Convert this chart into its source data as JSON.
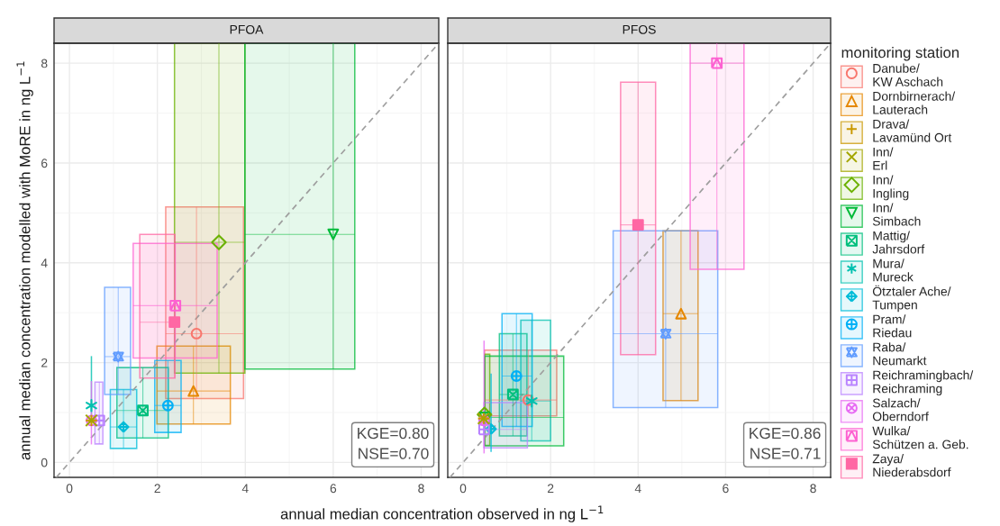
{
  "chart_data": [
    {
      "type": "scatter",
      "title": "PFOA",
      "xlabel": "annual median concentration observed in ng L$^{−1}$",
      "ylabel": "annual median concentration modelled with MoRE in ng L$^{−1}$",
      "xlim": [
        -0.35,
        8.4
      ],
      "ylim": [
        -0.3,
        8.4
      ],
      "xticks": [
        0,
        2,
        4,
        6,
        8
      ],
      "yticks": [
        0,
        2,
        4,
        6,
        8
      ],
      "grid": true,
      "legend": "right",
      "annotations": [
        "KGE=0.80",
        "NSE=0.70"
      ],
      "series": [
        {
          "type": "line",
          "color": "#9e9e9e",
          "line_style": "dashed",
          "x": [
            -0.3,
            8.4
          ],
          "values": [
            -0.3,
            8.4
          ]
        },
        {
          "name": "Danube/\nKW Aschach",
          "color": "#f8766d",
          "x": [
            2.89
          ],
          "values": [
            2.58
          ],
          "errors": [
            [
              1.28,
              5.12
            ]
          ],
          "xerrors": [
            [
              2.19,
              3.96
            ]
          ]
        },
        {
          "name": "Dornbirnerach/\nLauterach",
          "color": "#e58700",
          "x": [
            2.82
          ],
          "values": [
            1.43
          ],
          "errors": [
            [
              0.77,
              2.33
            ]
          ],
          "xerrors": [
            [
              1.99,
              3.66
            ]
          ]
        },
        {
          "name": "Drava/\nLavamünd Ort",
          "color": "#c99800",
          "x": [
            0.5
          ],
          "values": [
            0.84
          ],
          "errors": [
            null
          ],
          "xerrors": [
            null
          ]
        },
        {
          "name": "Inn/\nErl",
          "color": "#a3a500",
          "x": [
            0.5
          ],
          "values": [
            0.84
          ],
          "errors": [
            null
          ],
          "xerrors": [
            null
          ]
        },
        {
          "name": "Inn/\nIngling",
          "color": "#6bb100",
          "x": [
            3.4
          ],
          "values": [
            4.41
          ],
          "errors": [
            [
              1.79,
              8.4
            ]
          ],
          "xerrors": [
            [
              2.39,
              3.99
            ]
          ]
        },
        {
          "name": "Inn/\nSimbach",
          "color": "#00ba38",
          "x": [
            6.0
          ],
          "values": [
            4.57
          ],
          "errors": [
            [
              1.87,
              8.4
            ]
          ],
          "xerrors": [
            [
              3.99,
              6.49
            ]
          ]
        },
        {
          "name": "Mattig/\nJahrsdorf",
          "color": "#00bf7d",
          "x": [
            1.67
          ],
          "values": [
            1.04
          ],
          "errors": [
            [
              0.49,
              1.9
            ]
          ],
          "xerrors": [
            [
              1.08,
              2.25
            ]
          ]
        },
        {
          "name": "Mura/\nMureck",
          "color": "#00c0af",
          "x": [
            0.5
          ],
          "values": [
            1.14
          ],
          "errors": [
            [
              0.95,
              2.13
            ]
          ],
          "xerrors": [
            null
          ]
        },
        {
          "name": "Ötztaler Ache/\nTumpen",
          "color": "#00bcd8",
          "x": [
            1.23
          ],
          "values": [
            0.71
          ],
          "errors": [
            [
              0.28,
              1.46
            ]
          ],
          "xerrors": [
            [
              0.93,
              1.53
            ]
          ]
        },
        {
          "name": "Pram/\nRiedau",
          "color": "#00b0f6",
          "x": [
            2.24
          ],
          "values": [
            1.14
          ],
          "errors": [
            [
              0.6,
              2.04
            ]
          ],
          "xerrors": [
            [
              1.94,
              2.54
            ]
          ]
        },
        {
          "name": "Raba/\nNeumarkt",
          "color": "#619cff",
          "x": [
            1.11
          ],
          "values": [
            2.12
          ],
          "errors": [
            [
              1.36,
              3.51
            ]
          ],
          "xerrors": [
            [
              0.8,
              1.39
            ]
          ]
        },
        {
          "name": "Reichramingbach/\nReichraming",
          "color": "#b983ff",
          "x": [
            0.68
          ],
          "values": [
            0.84
          ],
          "errors": [
            [
              0.37,
              1.61
            ]
          ],
          "xerrors": [
            [
              0.58,
              0.76
            ]
          ]
        },
        {
          "name": "Salzach/\nOberndorf",
          "color": "#e76bf3",
          "x": [
            0.5
          ],
          "values": [
            0.84
          ],
          "errors": [
            [
              0.36,
              1.63
            ]
          ],
          "xerrors": [
            null
          ]
        },
        {
          "name": "Wulka/\nSchützen a. Geb.",
          "color": "#fd61d1",
          "x": [
            2.41
          ],
          "values": [
            3.14
          ],
          "errors": [
            [
              2.09,
              4.39
            ]
          ],
          "xerrors": [
            [
              1.45,
              3.36
            ]
          ]
        },
        {
          "name": "Zaya/\nNiederabsdorf",
          "color": "#ff67a4",
          "x": [
            2.39
          ],
          "values": [
            2.81
          ],
          "errors": [
            [
              1.69,
              4.57
            ]
          ],
          "xerrors": [
            [
              1.6,
              2.4
            ]
          ]
        }
      ]
    },
    {
      "type": "scatter",
      "title": "PFOS",
      "xlim": [
        -0.35,
        8.4
      ],
      "ylim": [
        -0.3,
        8.4
      ],
      "xticks": [
        0,
        2,
        4,
        6,
        8
      ],
      "yticks": [
        0,
        2,
        4,
        6,
        8
      ],
      "grid": true,
      "tick_labels": "x",
      "legend": "right",
      "legend_title": "monitoring station",
      "annotations": [
        "KGE=0.86",
        "NSE=0.71"
      ],
      "series": [
        {
          "type": "line",
          "color": "#9e9e9e",
          "line_style": "dashed",
          "x": [
            -0.3,
            8.4
          ],
          "values": [
            -0.3,
            8.4
          ]
        },
        {
          "name": "Danube/\nKW Aschach",
          "color": "#f8766d",
          "x": [
            1.49
          ],
          "values": [
            1.25
          ],
          "errors": [
            [
              0.93,
              2.25
            ]
          ],
          "xerrors": [
            [
              0.49,
              2.14
            ]
          ]
        },
        {
          "name": "Dornbirnerach/\nLauterach",
          "color": "#e58700",
          "x": [
            4.98
          ],
          "values": [
            2.98
          ],
          "errors": [
            [
              1.24,
              4.64
            ]
          ],
          "xerrors": [
            [
              4.57,
              5.37
            ]
          ]
        },
        {
          "name": "Drava/\nLavamünd Ort",
          "color": "#c99800",
          "x": [
            0.47
          ],
          "values": [
            0.88
          ],
          "errors": [
            null
          ],
          "xerrors": [
            null
          ]
        },
        {
          "name": "Inn/\nErl",
          "color": "#a3a500",
          "x": [
            0.47
          ],
          "values": [
            0.88
          ],
          "errors": [
            null
          ],
          "xerrors": [
            null
          ]
        },
        {
          "name": "Inn/\nIngling",
          "color": "#6bb100",
          "x": [
            0.49
          ],
          "values": [
            0.96
          ],
          "errors": [
            [
              0.34,
              2.17
            ]
          ],
          "xerrors": [
            [
              0.49,
              0.61
            ]
          ]
        },
        {
          "name": "Inn/\nSimbach",
          "color": "#00ba38",
          "x": [
            0.49
          ],
          "values": [
            0.9
          ],
          "errors": [
            [
              0.33,
              2.13
            ]
          ],
          "xerrors": [
            [
              0.49,
              2.3
            ]
          ]
        },
        {
          "name": "Mattig/\nJahrsdorf",
          "color": "#00bf7d",
          "x": [
            1.14
          ],
          "values": [
            1.36
          ],
          "errors": [
            [
              0.53,
              2.58
            ]
          ],
          "xerrors": [
            [
              0.83,
              1.46
            ]
          ]
        },
        {
          "name": "Mura/\nMureck",
          "color": "#00c0af",
          "x": [
            1.57
          ],
          "values": [
            1.23
          ],
          "errors": [
            [
              0.43,
              2.85
            ]
          ],
          "xerrors": [
            [
              1.32,
              2.0
            ]
          ]
        },
        {
          "name": "Ötztaler Ache/\nTumpen",
          "color": "#00bcd8",
          "x": [
            0.64
          ],
          "values": [
            0.67
          ],
          "errors": [
            [
              0.21,
              1.78
            ]
          ],
          "xerrors": [
            null
          ]
        },
        {
          "name": "Pram/\nRiedau",
          "color": "#00b0f6",
          "x": [
            1.22
          ],
          "values": [
            1.73
          ],
          "errors": [
            [
              0.72,
              2.98
            ]
          ],
          "xerrors": [
            [
              0.89,
              1.58
            ]
          ]
        },
        {
          "name": "Raba/\nNeumarkt",
          "color": "#619cff",
          "x": [
            4.63
          ],
          "values": [
            2.58
          ],
          "errors": [
            [
              1.1,
              4.64
            ]
          ],
          "xerrors": [
            [
              3.43,
              5.82
            ]
          ]
        },
        {
          "name": "Reichramingbach/\nReichraming",
          "color": "#b983ff",
          "x": [
            0.48
          ],
          "values": [
            0.66
          ],
          "errors": [
            [
              0.29,
              1.2
            ]
          ],
          "xerrors": [
            [
              0.48,
              1.47
            ]
          ]
        },
        {
          "name": "Salzach/\nOberndorf",
          "color": "#e76bf3",
          "x": [
            0.48
          ],
          "values": [
            0.84
          ],
          "errors": [
            [
              0.18,
              2.44
            ]
          ],
          "xerrors": [
            null
          ]
        },
        {
          "name": "Wulka/\nSchützen a. Geb.",
          "color": "#fd61d1",
          "x": [
            5.8
          ],
          "values": [
            8.0
          ],
          "errors": [
            [
              3.87,
              8.4
            ]
          ],
          "xerrors": [
            [
              5.19,
              6.42
            ]
          ]
        },
        {
          "name": "Zaya/\nNiederabsdorf",
          "color": "#ff67a4",
          "x": [
            4.0
          ],
          "values": [
            4.76
          ],
          "errors": [
            [
              2.16,
              7.62
            ]
          ],
          "xerrors": [
            [
              3.6,
              4.4
            ]
          ]
        }
      ]
    }
  ]
}
